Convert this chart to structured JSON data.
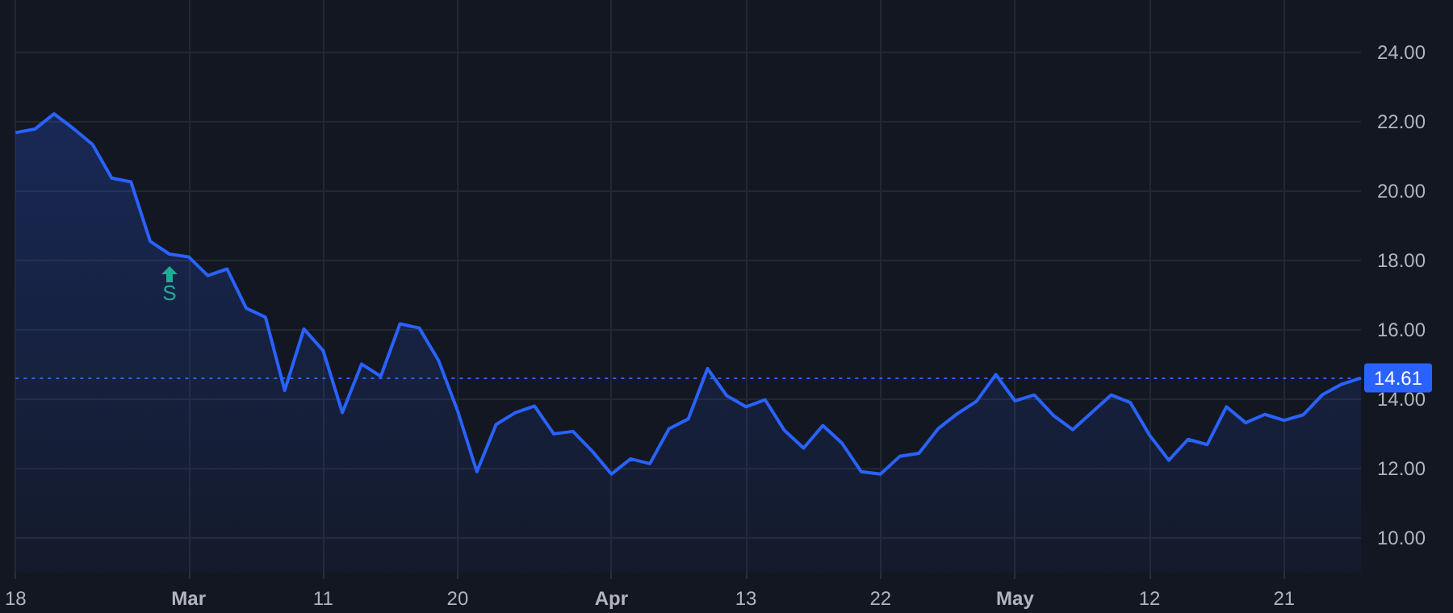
{
  "chart_data": {
    "type": "area",
    "categories": [
      "18",
      null,
      null,
      null,
      null,
      null,
      null,
      null,
      null,
      "Mar",
      null,
      null,
      null,
      null,
      null,
      null,
      "11",
      null,
      null,
      null,
      null,
      null,
      null,
      "20",
      null,
      null,
      null,
      null,
      null,
      null,
      null,
      "Apr",
      null,
      null,
      null,
      null,
      null,
      null,
      "13",
      null,
      null,
      null,
      null,
      null,
      null,
      "22",
      null,
      null,
      null,
      null,
      null,
      null,
      "May",
      null,
      null,
      null,
      null,
      null,
      null,
      "12",
      null,
      null,
      null,
      null,
      null,
      null,
      "21",
      null,
      null,
      null,
      null
    ],
    "series": [
      {
        "color": "#2962ff",
        "values": [
          21.68,
          21.78,
          22.22,
          21.8,
          21.34,
          20.37,
          20.26,
          18.55,
          18.18,
          18.1,
          17.56,
          17.75,
          16.62,
          16.36,
          14.25,
          16.02,
          15.4,
          13.61,
          15.01,
          14.66,
          16.17,
          16.05,
          15.12,
          13.66,
          11.91,
          13.27,
          13.61,
          13.8,
          13.0,
          13.07,
          12.5,
          11.84,
          12.28,
          12.14,
          13.15,
          13.43,
          14.88,
          14.1,
          13.78,
          13.98,
          13.1,
          12.59,
          13.24,
          12.73,
          11.91,
          11.84,
          12.35,
          12.44,
          13.15,
          13.58,
          13.94,
          14.71,
          13.95,
          14.12,
          13.53,
          13.12,
          13.62,
          14.12,
          13.9,
          12.96,
          12.24,
          12.84,
          12.69,
          13.78,
          13.32,
          13.56,
          13.39,
          13.55,
          14.13,
          14.43,
          14.61
        ]
      }
    ],
    "ylim": [
      9,
      25.5
    ],
    "yticks": [
      {
        "value": 10,
        "label": "10.00"
      },
      {
        "value": 12,
        "label": "12.00"
      },
      {
        "value": 14,
        "label": "14.00"
      },
      {
        "value": 16,
        "label": "16.00"
      },
      {
        "value": 18,
        "label": "18.00"
      },
      {
        "value": 20,
        "label": "20.00"
      },
      {
        "value": 22,
        "label": "22.00"
      },
      {
        "value": 24,
        "label": "24.00"
      }
    ],
    "ref_lines": [
      {
        "axis": "y",
        "value": 14.61,
        "label": "14.61",
        "color": "#2962ff",
        "line_style": "dotted"
      }
    ],
    "annotations": [
      "S"
    ],
    "grid": true,
    "marker": "none"
  }
}
